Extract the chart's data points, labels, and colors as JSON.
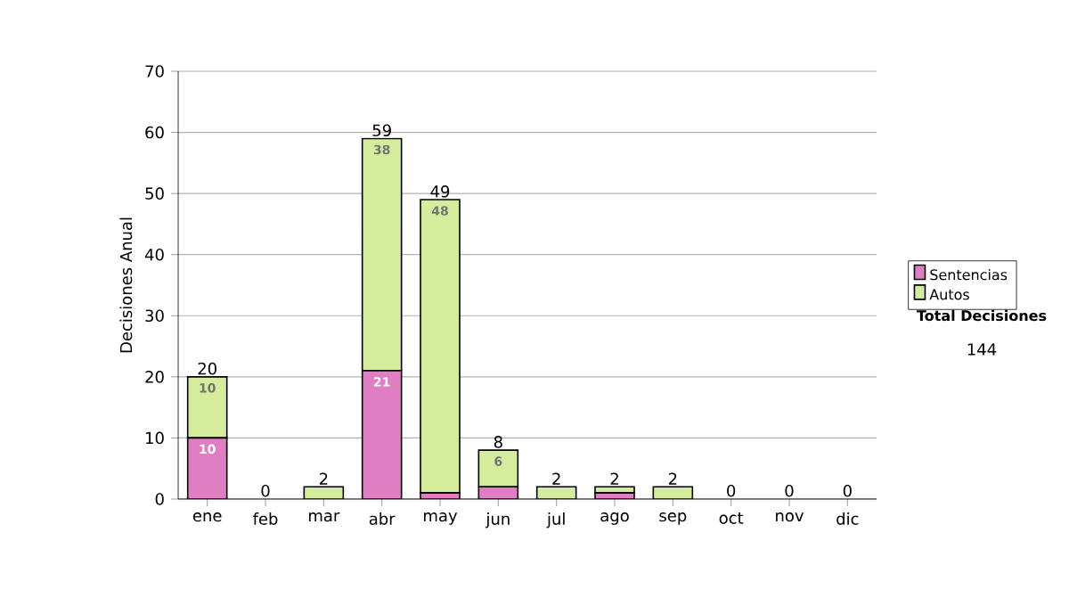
{
  "chart_data": {
    "type": "bar",
    "stacked": true,
    "ylabel": "Decisiones Anual",
    "categories": [
      "ene",
      "feb",
      "mar",
      "abr",
      "may",
      "jun",
      "jul",
      "ago",
      "sep",
      "oct",
      "nov",
      "dic"
    ],
    "series": [
      {
        "name": "Sentencias",
        "color": "#e07ec4",
        "values": [
          10,
          0,
          0,
          21,
          1,
          2,
          0,
          1,
          0,
          0,
          0,
          0
        ],
        "value_labels": [
          "10",
          null,
          null,
          "21",
          null,
          null,
          null,
          null,
          null,
          null,
          null,
          null
        ]
      },
      {
        "name": "Autos",
        "color": "#d4ec9c",
        "values": [
          10,
          0,
          2,
          38,
          48,
          6,
          2,
          1,
          2,
          0,
          0,
          0
        ],
        "value_labels": [
          "10",
          null,
          null,
          "38",
          "48",
          "6",
          null,
          null,
          null,
          null,
          null,
          null
        ]
      }
    ],
    "totals": [
      "20",
      "0",
      "2",
      "59",
      "49",
      "8",
      "2",
      "2",
      "2",
      "0",
      "0",
      "0"
    ],
    "ylim": [
      0,
      70
    ],
    "yticks": [
      0,
      10,
      20,
      30,
      40,
      50,
      60,
      70
    ],
    "grid": "y",
    "legend": "right",
    "annotations": [
      "Total Decisiones",
      "144"
    ]
  }
}
